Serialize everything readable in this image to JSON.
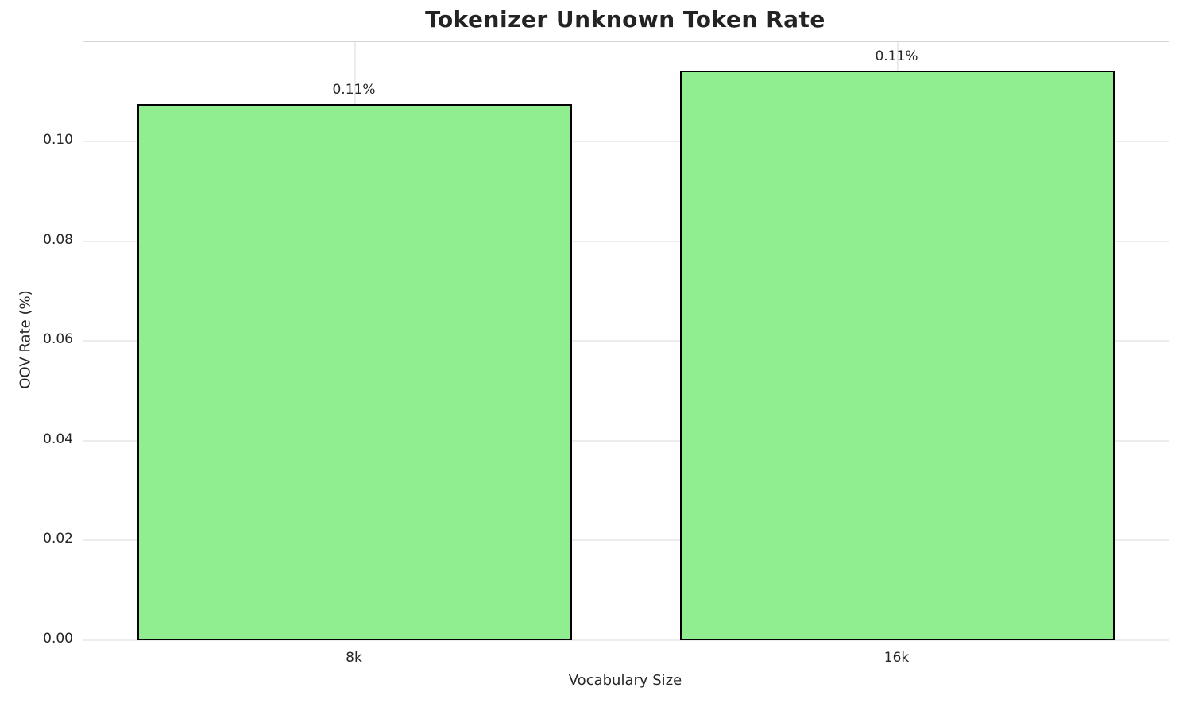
{
  "figure": {
    "background": "#ffffff"
  },
  "chart_data": {
    "type": "bar",
    "title": "Tokenizer Unknown Token Rate",
    "categories": [
      "8k",
      "16k"
    ],
    "values": [
      0.1075,
      0.1142
    ],
    "bar_labels": [
      "0.11%",
      "0.11%"
    ],
    "xlabel": "Vocabulary Size",
    "ylabel": "OOV Rate (%)",
    "ylim": [
      0,
      0.1199
    ],
    "xlim": [
      -0.5,
      1.5
    ],
    "bar_width": 0.8,
    "yticks": [
      0.0,
      0.02,
      0.04,
      0.06,
      0.08,
      0.1
    ],
    "ytick_labels": [
      "0.00",
      "0.02",
      "0.04",
      "0.06",
      "0.08",
      "0.10"
    ],
    "grid": true,
    "legend": "none",
    "bar_color": "#90EE90",
    "bar_edge_color": "#000000",
    "grid_color": "#ececec",
    "spine_color": "#d4d4d4",
    "text_color": "#262626",
    "title_color": "#232323"
  }
}
